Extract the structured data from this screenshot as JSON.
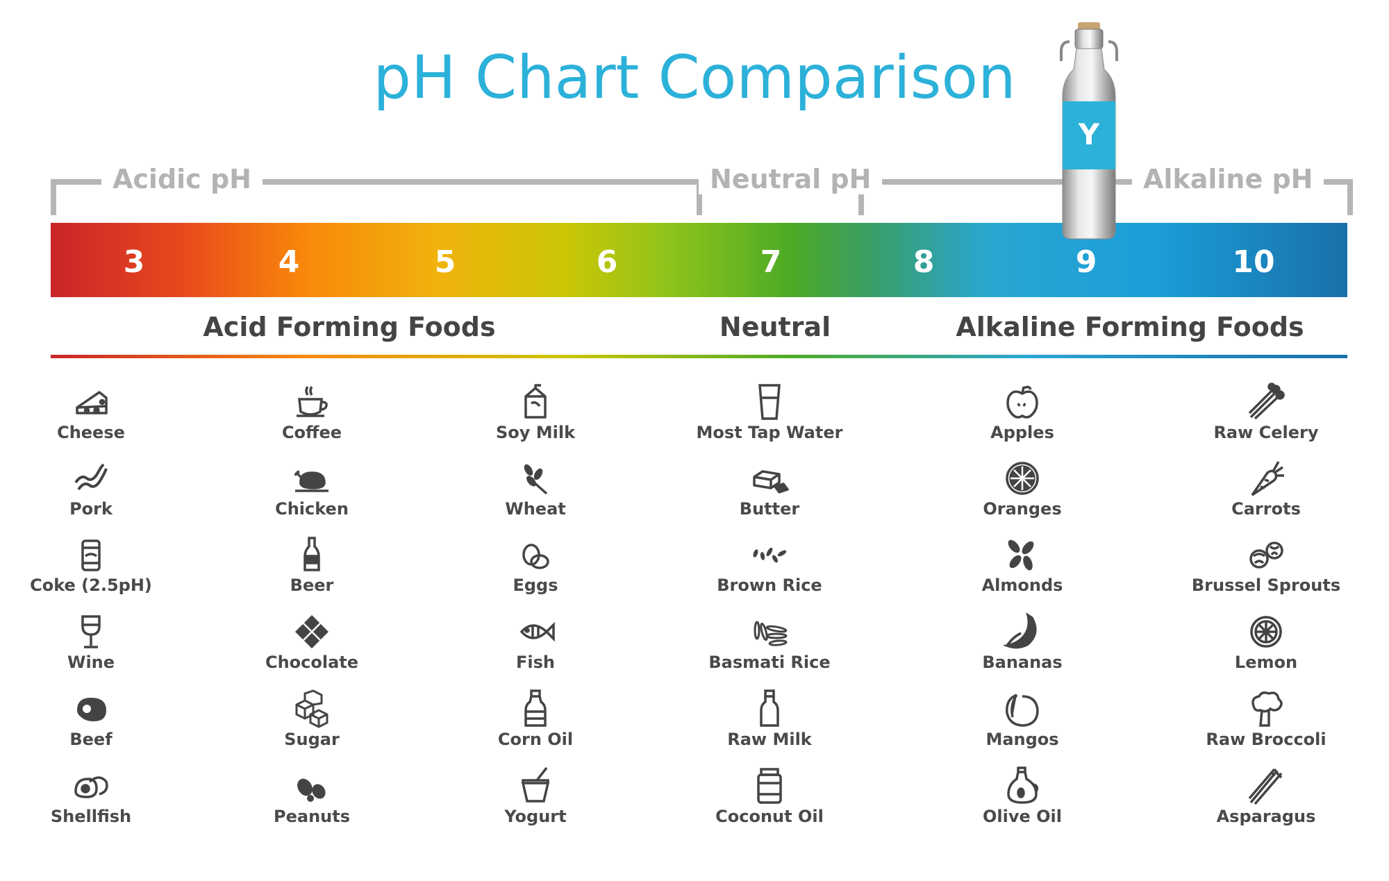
{
  "title": "pH Chart Comparison",
  "zones": {
    "acidic": "Acidic pH",
    "neutral": "Neutral pH",
    "alkaline": "Alkaline pH"
  },
  "scale": [
    "3",
    "4",
    "5",
    "6",
    "7",
    "8",
    "9",
    "10"
  ],
  "sections": {
    "acid": "Acid Forming Foods",
    "neutral": "Neutral",
    "alkaline": "Alkaline Forming Foods"
  },
  "columns": [
    {
      "items": [
        {
          "label": "Cheese",
          "icon": "cheese-icon"
        },
        {
          "label": "Pork",
          "icon": "bacon-icon"
        },
        {
          "label": "Coke (2.5pH)",
          "icon": "soda-can-icon"
        },
        {
          "label": "Wine",
          "icon": "wine-glass-icon"
        },
        {
          "label": "Beef",
          "icon": "steak-icon"
        },
        {
          "label": "Shellfish",
          "icon": "oyster-icon"
        }
      ]
    },
    {
      "items": [
        {
          "label": "Coffee",
          "icon": "coffee-cup-icon"
        },
        {
          "label": "Chicken",
          "icon": "roast-chicken-icon"
        },
        {
          "label": "Beer",
          "icon": "beer-bottle-icon"
        },
        {
          "label": "Chocolate",
          "icon": "chocolate-bar-icon"
        },
        {
          "label": "Sugar",
          "icon": "sugar-cubes-icon"
        },
        {
          "label": "Peanuts",
          "icon": "peanut-icon"
        }
      ]
    },
    {
      "items": [
        {
          "label": "Soy Milk",
          "icon": "milk-carton-icon"
        },
        {
          "label": "Wheat",
          "icon": "wheat-icon"
        },
        {
          "label": "Eggs",
          "icon": "eggs-icon"
        },
        {
          "label": "Fish",
          "icon": "fish-icon"
        },
        {
          "label": "Corn Oil",
          "icon": "oil-bottle-icon"
        },
        {
          "label": "Yogurt",
          "icon": "yogurt-icon"
        }
      ]
    },
    {
      "items": [
        {
          "label": "Most Tap Water",
          "icon": "water-glass-icon"
        },
        {
          "label": "Butter",
          "icon": "butter-icon"
        },
        {
          "label": "Brown Rice",
          "icon": "brown-rice-icon"
        },
        {
          "label": "Basmati Rice",
          "icon": "basmati-rice-icon"
        },
        {
          "label": "Raw Milk",
          "icon": "milk-bottle-icon"
        },
        {
          "label": "Coconut Oil",
          "icon": "jar-icon"
        }
      ]
    },
    {
      "items": [
        {
          "label": "Apples",
          "icon": "apple-icon"
        },
        {
          "label": "Oranges",
          "icon": "orange-slice-icon"
        },
        {
          "label": "Almonds",
          "icon": "almonds-icon"
        },
        {
          "label": "Bananas",
          "icon": "banana-icon"
        },
        {
          "label": "Mangos",
          "icon": "mango-icon"
        },
        {
          "label": "Olive Oil",
          "icon": "olive-oil-icon"
        }
      ]
    },
    {
      "items": [
        {
          "label": "Raw Celery",
          "icon": "celery-icon"
        },
        {
          "label": "Carrots",
          "icon": "carrot-icon"
        },
        {
          "label": "Brussel Sprouts",
          "icon": "brussels-sprouts-icon"
        },
        {
          "label": "Lemon",
          "icon": "lemon-slice-icon"
        },
        {
          "label": "Raw Broccoli",
          "icon": "broccoli-icon"
        },
        {
          "label": "Asparagus",
          "icon": "asparagus-icon"
        }
      ]
    }
  ],
  "colors": {
    "title": "#2cb1d9",
    "bracket": "#b5b5b5",
    "text": "#4a4a4a",
    "bottle_band": "#2cb1d9"
  }
}
